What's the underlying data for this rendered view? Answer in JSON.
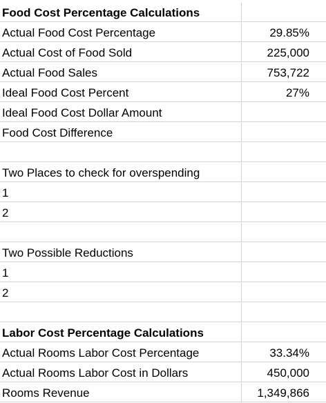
{
  "rows": [
    {
      "label": "Food Cost Percentage Calculations",
      "value": "",
      "bold": true
    },
    {
      "label": "Actual Food Cost Percentage",
      "value": "29.85%"
    },
    {
      "label": "Actual Cost of Food Sold",
      "value": "225,000"
    },
    {
      "label": "Actual Food Sales",
      "value": "753,722"
    },
    {
      "label": "Ideal Food Cost Percent",
      "value": "27%"
    },
    {
      "label": "Ideal Food Cost Dollar Amount",
      "value": ""
    },
    {
      "label": "Food Cost Difference",
      "value": ""
    },
    {
      "label": "",
      "value": ""
    },
    {
      "label": "Two Places to check for overspending",
      "value": ""
    },
    {
      "label": "1",
      "value": ""
    },
    {
      "label": "2",
      "value": ""
    },
    {
      "label": "",
      "value": ""
    },
    {
      "label": "Two Possible Reductions",
      "value": ""
    },
    {
      "label": "1",
      "value": ""
    },
    {
      "label": "2",
      "value": ""
    },
    {
      "label": "",
      "value": ""
    },
    {
      "label": "Labor Cost Percentage Calculations",
      "value": "",
      "bold": true
    },
    {
      "label": "Actual Rooms Labor Cost Percentage",
      "value": "33.34%"
    },
    {
      "label": "Actual Rooms Labor Cost in Dollars",
      "value": "450,000"
    },
    {
      "label": "Rooms Revenue",
      "value": "1,349,866"
    }
  ]
}
